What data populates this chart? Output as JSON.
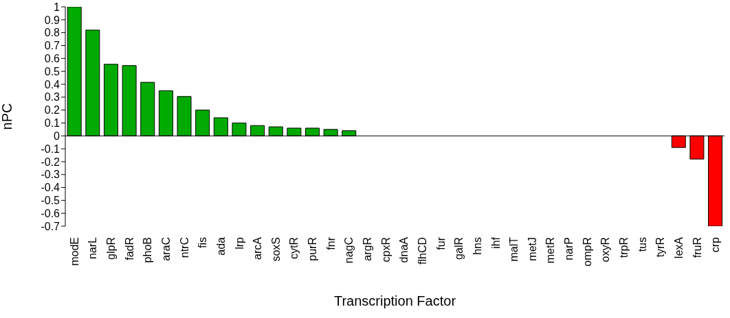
{
  "chart_data": {
    "type": "bar",
    "xlabel": "Transcription Factor",
    "ylabel": "nPC",
    "categories": [
      "modE",
      "narL",
      "glpR",
      "fadR",
      "phoB",
      "araC",
      "ntrC",
      "fis",
      "ada",
      "lrp",
      "arcA",
      "soxS",
      "cytR",
      "purR",
      "fnr",
      "nagC",
      "argR",
      "cpxR",
      "dnaA",
      "flhCD",
      "fur",
      "galR",
      "hns",
      "ihf",
      "malT",
      "metJ",
      "metR",
      "narP",
      "ompR",
      "oxyR",
      "trpR",
      "tus",
      "tyrR",
      "lexA",
      "fruR",
      "crp"
    ],
    "values": [
      1,
      0.82,
      0.555,
      0.545,
      0.415,
      0.35,
      0.305,
      0.2,
      0.14,
      0.1,
      0.08,
      0.07,
      0.06,
      0.06,
      0.05,
      0.04,
      0,
      0,
      0,
      0,
      0,
      0,
      0,
      0,
      0,
      0,
      0,
      0,
      0,
      0,
      0,
      0,
      0,
      -0.09,
      -0.18,
      -0.7
    ],
    "colors": [
      "#00aa00",
      "#00aa00",
      "#00aa00",
      "#00aa00",
      "#00aa00",
      "#00aa00",
      "#00aa00",
      "#00aa00",
      "#00aa00",
      "#00aa00",
      "#00aa00",
      "#00aa00",
      "#00aa00",
      "#00aa00",
      "#00aa00",
      "#00aa00",
      "#00aa00",
      "#00aa00",
      "#00aa00",
      "#00aa00",
      "#00aa00",
      "#00aa00",
      "#00aa00",
      "#00aa00",
      "#00aa00",
      "#00aa00",
      "#00aa00",
      "#00aa00",
      "#00aa00",
      "#00aa00",
      "#00aa00",
      "#00aa00",
      "#00aa00",
      "#ff0000",
      "#ff0000",
      "#ff0000"
    ],
    "ylim": [
      -0.7,
      1
    ],
    "yticks": [
      -0.7,
      -0.6,
      -0.5,
      -0.4,
      -0.3,
      -0.2,
      -0.1,
      0,
      0.1,
      0.2,
      0.3,
      0.4,
      0.5,
      0.6,
      0.7,
      0.8,
      0.9,
      1
    ],
    "ref_lines": [
      {
        "axis": "y",
        "value": 0,
        "color": "#000000"
      }
    ],
    "grid": false,
    "legend": false
  }
}
